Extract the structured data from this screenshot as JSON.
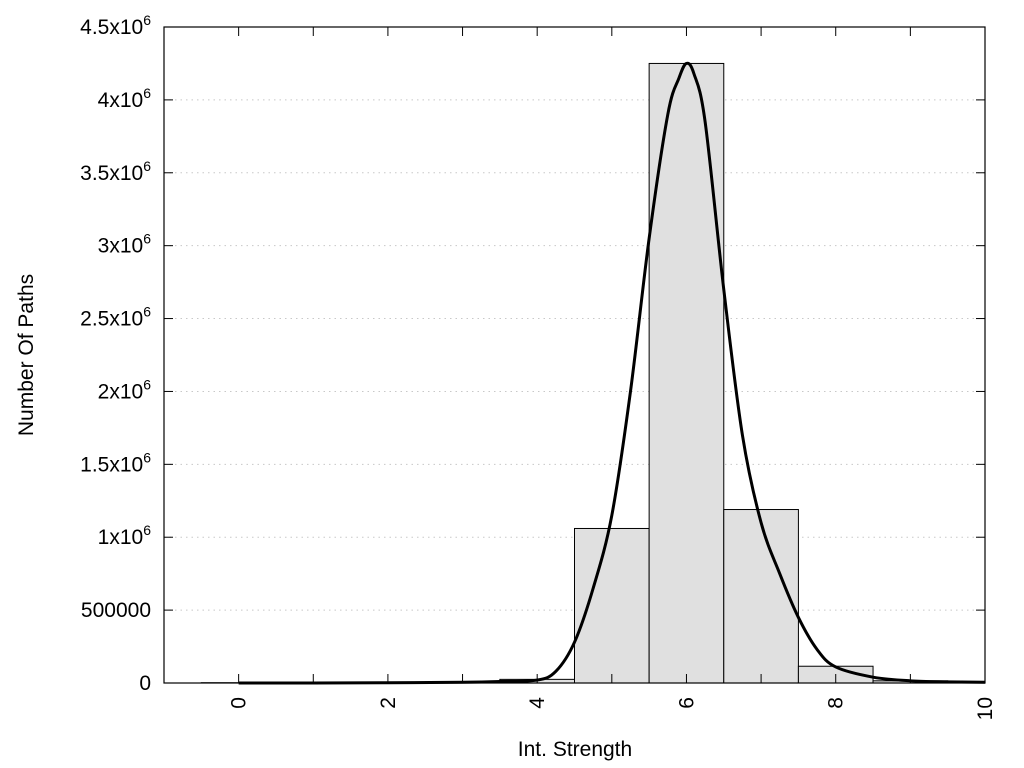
{
  "chart_data": {
    "type": "bar",
    "xlabel": "Int. Strength",
    "ylabel": "Number Of Paths",
    "xlim": [
      -1,
      10
    ],
    "ylim": [
      0,
      4500000
    ],
    "grid": "horizontal dotted",
    "x_tick_values": [
      0,
      2,
      4,
      6,
      8,
      10
    ],
    "x_tick_labels": [
      "0",
      "2",
      "4",
      "6",
      "8",
      "10"
    ],
    "y_ticks": [
      {
        "value": 0,
        "mantissa": "0",
        "exp": ""
      },
      {
        "value": 500000,
        "mantissa": "500000",
        "exp": ""
      },
      {
        "value": 1000000,
        "mantissa": "1x10",
        "exp": "6"
      },
      {
        "value": 1500000,
        "mantissa": "1.5x10",
        "exp": "6"
      },
      {
        "value": 2000000,
        "mantissa": "2x10",
        "exp": "6"
      },
      {
        "value": 2500000,
        "mantissa": "2.5x10",
        "exp": "6"
      },
      {
        "value": 3000000,
        "mantissa": "3x10",
        "exp": "6"
      },
      {
        "value": 3500000,
        "mantissa": "3.5x10",
        "exp": "6"
      },
      {
        "value": 4000000,
        "mantissa": "4x10",
        "exp": "6"
      },
      {
        "value": 4500000,
        "mantissa": "4.5x10",
        "exp": "6"
      }
    ],
    "histogram": {
      "bin_width": 1,
      "bin_centers": [
        0,
        1,
        2,
        3,
        4,
        5,
        6,
        7,
        8,
        9,
        10
      ],
      "values": [
        2000,
        2000,
        3000,
        8000,
        25000,
        1060000,
        4250000,
        1190000,
        115000,
        15000,
        3000
      ],
      "fill": "#e0e0e0",
      "stroke": "#000000"
    },
    "fit_curve": {
      "x": [
        0,
        1,
        2,
        3,
        3.5,
        4,
        4.25,
        4.5,
        4.75,
        5,
        5.25,
        5.5,
        5.75,
        5.9,
        6,
        6.1,
        6.25,
        6.5,
        6.75,
        7,
        7.25,
        7.5,
        7.75,
        8,
        8.5,
        9,
        9.5,
        10
      ],
      "y": [
        0,
        0,
        2000,
        5000,
        10000,
        20000,
        80000,
        280000,
        650000,
        1150000,
        2000000,
        3050000,
        3900000,
        4150000,
        4250000,
        4180000,
        3850000,
        2700000,
        1700000,
        1100000,
        750000,
        450000,
        230000,
        110000,
        40000,
        15000,
        8000,
        5000
      ],
      "stroke": "#000000"
    }
  }
}
